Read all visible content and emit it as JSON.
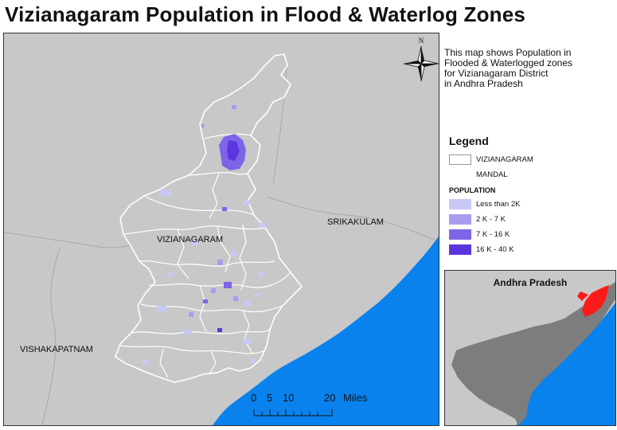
{
  "title": "Vizianagaram Population in Flood & Waterlog Zones",
  "description": [
    "This map shows Population in",
    "Flooded & Waterlogged zones",
    "for Vizianagaram District",
    "in Andhra Pradesh"
  ],
  "north_arrow": {
    "letter": "N"
  },
  "labels": {
    "vizianagaram": "VIZIANAGARAM",
    "srikakulam": "SRIKAKULAM",
    "vishakapatnam": "VISHAKAPATNAM"
  },
  "scale_bar": {
    "ticks": [
      "0",
      "5",
      "10",
      "20"
    ],
    "unit": "Miles"
  },
  "legend": {
    "title": "Legend",
    "boundary_items": [
      {
        "label": "VIZIANAGARAM"
      },
      {
        "label": "MANDAL"
      }
    ],
    "population_title": "POPULATION",
    "classes": [
      {
        "label": "Less than 2K",
        "color": "#c8c8f4"
      },
      {
        "label": "2 K - 7 K",
        "color": "#a99cf0"
      },
      {
        "label": "7 K - 16 K",
        "color": "#7f64e8"
      },
      {
        "label": "16 K - 40 K",
        "color": "#5b36de"
      }
    ]
  },
  "inset": {
    "title": "Andhra Pradesh"
  },
  "colors": {
    "land": "#c8c8c8",
    "sea": "#0a82ee",
    "state": "#7d7d7d",
    "highlight": "#ff1a1a"
  }
}
